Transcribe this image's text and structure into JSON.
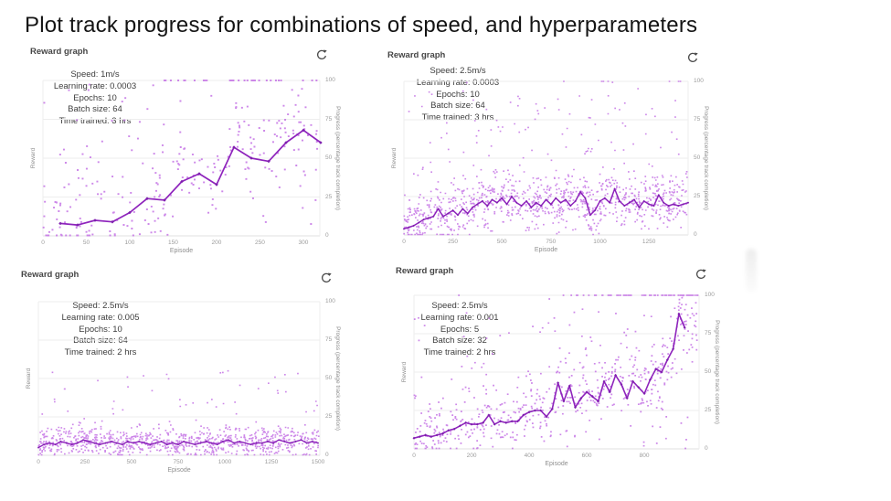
{
  "title": "Plot track progress for combinations of speed, and hyperparameters",
  "colors": {
    "scatter": "#c06ae3",
    "line": "#8e24bc",
    "marker": "#7e1fae",
    "grid": "#ededed",
    "axis_line": "#e0e0e0",
    "tick_text": "#9b9b9b",
    "axis_text": "#8f8f8f",
    "header_text": "#454545",
    "annotation_text": "#3d3d3d",
    "icon": "#4a4a4a"
  },
  "shared": {
    "header_label": "Reward graph",
    "refresh_icon": "refresh-icon",
    "xlabel": "Episode",
    "ylabel_left": "Reward",
    "ylabel_right": "Progress (percentage track completion)",
    "y_ticks_right": [
      0,
      25,
      50,
      75,
      100
    ],
    "ylim": [
      0,
      100
    ]
  },
  "chart_data": [
    {
      "type": "scatter",
      "position": "top-left",
      "title": "Reward graph",
      "xlabel": "Episode",
      "ylabel": "Reward",
      "ylabel_right": "Progress (percentage track completion)",
      "ylim": [
        0,
        100
      ],
      "x_ticks": [
        0,
        50,
        100,
        150,
        200,
        250,
        300
      ],
      "annotation": {
        "speed": "Speed: 1m/s",
        "learning_rate": "Learning rate: 0.0003",
        "epochs": "Epochs: 10",
        "batch_size": "Batch size: 64",
        "time_trained": "Time trained: 3 hrs"
      },
      "line_series": {
        "name": "mean reward trend",
        "points": [
          [
            20,
            8
          ],
          [
            40,
            7
          ],
          [
            60,
            10
          ],
          [
            80,
            9
          ],
          [
            100,
            15
          ],
          [
            120,
            24
          ],
          [
            140,
            23
          ],
          [
            160,
            35
          ],
          [
            180,
            40
          ],
          [
            200,
            33
          ],
          [
            220,
            57
          ],
          [
            240,
            50
          ],
          [
            260,
            48
          ],
          [
            280,
            60
          ],
          [
            300,
            68
          ],
          [
            320,
            60
          ]
        ]
      },
      "scatter_series": {
        "name": "episode rewards (approximated distribution)",
        "generator": {
          "count": 270,
          "seed": 11,
          "spread": 21,
          "uniform_frac": 0.22,
          "uniform_max": 100,
          "upshift": 30,
          "x_max": 316,
          "top_row": {
            "count": 30,
            "from_frac": 0.42,
            "right_bias": 0.1
          }
        }
      }
    },
    {
      "type": "scatter",
      "position": "top-right",
      "title": "Reward graph",
      "xlabel": "Episode",
      "ylabel": "Reward",
      "ylabel_right": "Progress (percentage track completion)",
      "ylim": [
        0,
        100
      ],
      "x_ticks": [
        0,
        250,
        500,
        750,
        1000,
        1250
      ],
      "annotation": {
        "speed": "Speed: 2.5m/s",
        "learning_rate": "Learning rate: 0.0003",
        "epochs": "Epochs: 10",
        "batch_size": "Batch size: 64",
        "time_trained": "Time trained: 3 hrs"
      },
      "line_series": {
        "name": "mean reward trend",
        "points": [
          [
            0,
            4
          ],
          [
            25,
            5
          ],
          [
            50,
            6
          ],
          [
            75,
            8
          ],
          [
            100,
            10
          ],
          [
            125,
            11
          ],
          [
            150,
            12
          ],
          [
            175,
            17
          ],
          [
            200,
            12
          ],
          [
            225,
            14
          ],
          [
            250,
            16
          ],
          [
            275,
            13
          ],
          [
            300,
            17
          ],
          [
            325,
            14
          ],
          [
            350,
            18
          ],
          [
            375,
            20
          ],
          [
            400,
            22
          ],
          [
            425,
            19
          ],
          [
            450,
            23
          ],
          [
            475,
            21
          ],
          [
            500,
            24
          ],
          [
            525,
            20
          ],
          [
            550,
            25
          ],
          [
            575,
            21
          ],
          [
            600,
            19
          ],
          [
            625,
            22
          ],
          [
            650,
            18
          ],
          [
            675,
            21
          ],
          [
            700,
            19
          ],
          [
            725,
            23
          ],
          [
            750,
            20
          ],
          [
            775,
            24
          ],
          [
            800,
            21
          ],
          [
            825,
            23
          ],
          [
            850,
            19
          ],
          [
            875,
            22
          ],
          [
            900,
            28
          ],
          [
            925,
            24
          ],
          [
            950,
            13
          ],
          [
            975,
            16
          ],
          [
            1000,
            22
          ],
          [
            1025,
            24
          ],
          [
            1050,
            21
          ],
          [
            1075,
            30
          ],
          [
            1100,
            22
          ],
          [
            1125,
            19
          ],
          [
            1150,
            21
          ],
          [
            1175,
            23
          ],
          [
            1200,
            18
          ],
          [
            1225,
            22
          ],
          [
            1250,
            20
          ],
          [
            1275,
            19
          ],
          [
            1300,
            26
          ],
          [
            1325,
            21
          ],
          [
            1350,
            19
          ],
          [
            1375,
            20
          ],
          [
            1400,
            19
          ],
          [
            1425,
            20
          ],
          [
            1450,
            21
          ]
        ]
      },
      "scatter_series": {
        "name": "episode rewards (approximated distribution)",
        "generator": {
          "count": 1050,
          "seed": 23,
          "spread": 13,
          "uniform_frac": 0.16,
          "uniform_max": 95,
          "upshift": 12,
          "x_max": 1445,
          "top_row": {
            "count": 6,
            "from_frac": 0.15,
            "right_bias": 0
          }
        }
      }
    },
    {
      "type": "scatter",
      "position": "bottom-left",
      "title": "Reward graph",
      "xlabel": "Episode",
      "ylabel": "Reward",
      "ylabel_right": "Progress (percentage track completion)",
      "ylim": [
        0,
        100
      ],
      "x_ticks": [
        0,
        250,
        500,
        750,
        1000,
        1250,
        1500
      ],
      "annotation": {
        "speed": "Speed: 2.5m/s",
        "learning_rate": "Learning rate: 0.005",
        "epochs": "Epochs: 10",
        "batch_size": "Batch size: 64",
        "time_trained": "Time trained: 2 hrs"
      },
      "line_series": {
        "name": "mean reward trend",
        "points": [
          [
            0,
            5
          ],
          [
            30,
            7
          ],
          [
            60,
            8
          ],
          [
            90,
            7
          ],
          [
            120,
            9
          ],
          [
            150,
            8
          ],
          [
            180,
            7
          ],
          [
            210,
            8
          ],
          [
            240,
            10
          ],
          [
            270,
            9
          ],
          [
            300,
            8
          ],
          [
            330,
            7
          ],
          [
            360,
            8
          ],
          [
            390,
            9
          ],
          [
            420,
            8
          ],
          [
            450,
            7
          ],
          [
            480,
            9
          ],
          [
            510,
            8
          ],
          [
            540,
            9
          ],
          [
            570,
            8
          ],
          [
            600,
            7
          ],
          [
            630,
            8
          ],
          [
            660,
            9
          ],
          [
            690,
            7
          ],
          [
            720,
            8
          ],
          [
            750,
            7
          ],
          [
            780,
            9
          ],
          [
            810,
            8
          ],
          [
            840,
            7
          ],
          [
            870,
            8
          ],
          [
            900,
            9
          ],
          [
            930,
            8
          ],
          [
            960,
            7
          ],
          [
            990,
            9
          ],
          [
            1020,
            10
          ],
          [
            1050,
            8
          ],
          [
            1080,
            9
          ],
          [
            1110,
            8
          ],
          [
            1140,
            7
          ],
          [
            1170,
            8
          ],
          [
            1200,
            8
          ],
          [
            1230,
            9
          ],
          [
            1260,
            8
          ],
          [
            1290,
            10
          ],
          [
            1320,
            9
          ],
          [
            1350,
            8
          ],
          [
            1380,
            9
          ],
          [
            1410,
            10
          ],
          [
            1440,
            8
          ],
          [
            1470,
            9
          ],
          [
            1500,
            8
          ]
        ]
      },
      "scatter_series": {
        "name": "episode rewards (approximated distribution)",
        "generator": {
          "count": 950,
          "seed": 37,
          "spread": 7.5,
          "uniform_frac": 0.07,
          "uniform_max": 54,
          "upshift": 6,
          "x_max": 1505,
          "top_row": {
            "count": 0,
            "from_frac": 0,
            "right_bias": 0
          }
        }
      }
    },
    {
      "type": "scatter",
      "position": "bottom-right",
      "title": "Reward graph",
      "xlabel": "Episode",
      "ylabel": "Reward",
      "ylabel_right": "Progress (percentage track completion)",
      "ylim": [
        0,
        100
      ],
      "x_ticks": [
        0,
        200,
        400,
        600,
        800
      ],
      "annotation": {
        "speed": "Speed: 2.5m/s",
        "learning_rate": "Learning rate: 0.001",
        "epochs": "Epochs: 5",
        "batch_size": "Batch size: 32",
        "time_trained": "Time trained: 2 hrs"
      },
      "line_series": {
        "name": "mean reward trend",
        "points": [
          [
            0,
            7
          ],
          [
            20,
            8
          ],
          [
            40,
            9
          ],
          [
            60,
            8
          ],
          [
            80,
            9
          ],
          [
            100,
            10
          ],
          [
            120,
            12
          ],
          [
            140,
            13
          ],
          [
            160,
            15
          ],
          [
            180,
            17
          ],
          [
            200,
            16
          ],
          [
            220,
            16
          ],
          [
            240,
            17
          ],
          [
            260,
            22
          ],
          [
            280,
            16
          ],
          [
            300,
            18
          ],
          [
            320,
            17
          ],
          [
            340,
            18
          ],
          [
            360,
            18
          ],
          [
            380,
            22
          ],
          [
            400,
            24
          ],
          [
            420,
            25
          ],
          [
            440,
            25
          ],
          [
            460,
            21
          ],
          [
            480,
            26
          ],
          [
            500,
            43
          ],
          [
            520,
            31
          ],
          [
            540,
            41
          ],
          [
            560,
            27
          ],
          [
            580,
            33
          ],
          [
            600,
            37
          ],
          [
            620,
            34
          ],
          [
            640,
            31
          ],
          [
            660,
            44
          ],
          [
            680,
            37
          ],
          [
            700,
            48
          ],
          [
            720,
            42
          ],
          [
            740,
            33
          ],
          [
            760,
            44
          ],
          [
            780,
            40
          ],
          [
            800,
            36
          ],
          [
            820,
            45
          ],
          [
            840,
            52
          ],
          [
            860,
            50
          ],
          [
            880,
            58
          ],
          [
            900,
            65
          ],
          [
            920,
            88
          ],
          [
            940,
            79
          ]
        ]
      },
      "scatter_series": {
        "name": "episode rewards (approximated distribution)",
        "generator": {
          "count": 620,
          "seed": 53,
          "spread": 15,
          "uniform_frac": 0.18,
          "uniform_max": 90,
          "upshift": 22,
          "x_max": 985,
          "top_row": {
            "count": 70,
            "from_frac": 0.45,
            "right_bias": 0.6
          }
        }
      }
    }
  ]
}
